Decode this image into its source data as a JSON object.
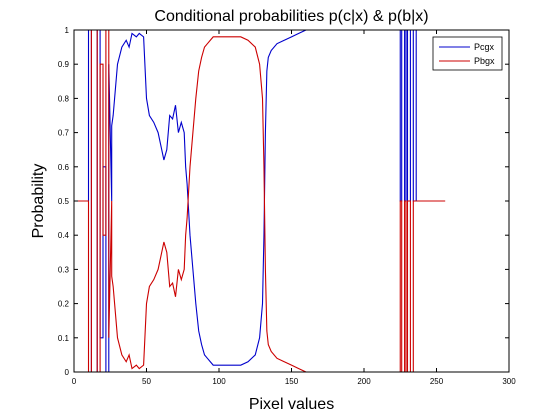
{
  "chart_data": {
    "type": "line",
    "title": "Conditional probabilities p(c|x) & p(b|x)",
    "xlabel": "Pixel values",
    "ylabel": "Probability",
    "xlim": [
      0,
      300
    ],
    "ylim": [
      0,
      1
    ],
    "xticks": [
      0,
      50,
      100,
      150,
      200,
      250,
      300
    ],
    "yticks": [
      0,
      0.1,
      0.2,
      0.3,
      0.4,
      0.5,
      0.6,
      0.7,
      0.8,
      0.9,
      1
    ],
    "grid": false,
    "legend": {
      "position": "top-right",
      "entries": [
        "Pcgx",
        "Pbgx"
      ]
    },
    "series": [
      {
        "name": "Pcgx",
        "color": "#0000cc",
        "x": [
          10,
          10,
          12,
          12,
          16,
          16,
          18,
          18,
          20,
          20,
          22,
          22,
          24,
          24,
          26,
          26,
          27,
          28,
          30,
          33,
          36,
          38,
          40,
          43,
          45,
          48,
          50,
          52,
          55,
          58,
          60,
          62,
          64,
          66,
          68,
          70,
          72,
          74,
          76,
          77,
          78,
          80,
          82,
          84,
          86,
          88,
          90,
          92,
          94,
          96,
          100,
          105,
          110,
          115,
          120,
          125,
          128,
          130,
          131,
          132,
          133,
          134,
          136,
          140,
          145,
          150,
          155,
          160,
          225,
          225,
          226,
          226,
          228,
          228,
          229,
          229,
          230,
          230,
          232,
          232,
          234,
          234,
          236,
          236,
          256
        ],
        "y": [
          0.5,
          1,
          1,
          0,
          0,
          1,
          1,
          0.1,
          0.1,
          0.6,
          0.6,
          0,
          0,
          0.9,
          0.5,
          0.72,
          0.75,
          0.8,
          0.9,
          0.95,
          0.97,
          0.95,
          0.99,
          0.98,
          0.99,
          0.98,
          0.8,
          0.75,
          0.73,
          0.7,
          0.66,
          0.62,
          0.65,
          0.75,
          0.74,
          0.78,
          0.7,
          0.73,
          0.7,
          0.6,
          0.55,
          0.4,
          0.3,
          0.2,
          0.12,
          0.08,
          0.05,
          0.04,
          0.03,
          0.02,
          0.02,
          0.02,
          0.02,
          0.02,
          0.03,
          0.05,
          0.1,
          0.2,
          0.4,
          0.7,
          0.88,
          0.92,
          0.94,
          0.96,
          0.97,
          0.98,
          0.99,
          1,
          1,
          0.5,
          0.5,
          1,
          1,
          0.5,
          0.5,
          1,
          1,
          0.5,
          0.5,
          1,
          1,
          0.5,
          0.5,
          1,
          1
        ]
      },
      {
        "name": "Pbgx",
        "color": "#cc0000",
        "x": [
          0,
          10,
          10,
          12,
          12,
          16,
          16,
          18,
          18,
          20,
          20,
          22,
          22,
          24,
          24,
          26,
          26,
          27,
          28,
          30,
          33,
          36,
          38,
          40,
          43,
          45,
          48,
          50,
          52,
          55,
          58,
          60,
          62,
          64,
          66,
          68,
          70,
          72,
          74,
          76,
          77,
          78,
          80,
          82,
          84,
          86,
          88,
          90,
          92,
          94,
          96,
          100,
          105,
          110,
          115,
          120,
          125,
          128,
          130,
          131,
          132,
          133,
          134,
          136,
          140,
          145,
          150,
          155,
          160,
          225,
          225,
          226,
          226,
          228,
          228,
          229,
          229,
          230,
          230,
          232,
          232,
          234,
          234,
          236,
          236,
          256
        ],
        "y": [
          0.5,
          0.5,
          0,
          0,
          1,
          1,
          0,
          0,
          0.9,
          0.9,
          0.4,
          0.4,
          1,
          1,
          0.1,
          0.5,
          0.28,
          0.25,
          0.2,
          0.1,
          0.05,
          0.03,
          0.05,
          0.01,
          0.02,
          0.01,
          0.02,
          0.2,
          0.25,
          0.27,
          0.3,
          0.34,
          0.38,
          0.35,
          0.25,
          0.26,
          0.22,
          0.3,
          0.27,
          0.3,
          0.4,
          0.45,
          0.6,
          0.7,
          0.8,
          0.88,
          0.92,
          0.95,
          0.96,
          0.97,
          0.98,
          0.98,
          0.98,
          0.98,
          0.98,
          0.97,
          0.95,
          0.9,
          0.8,
          0.6,
          0.3,
          0.12,
          0.08,
          0.06,
          0.04,
          0.03,
          0.02,
          0.01,
          0,
          0,
          0.5,
          0.5,
          0,
          0,
          0.5,
          0.5,
          0,
          0,
          0.5,
          0.5,
          0,
          0,
          0.5,
          0.5,
          0.5,
          0.5
        ]
      }
    ]
  }
}
